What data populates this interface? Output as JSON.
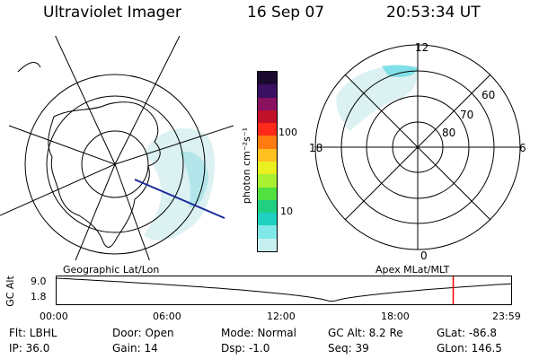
{
  "header": {
    "instrument": "Ultraviolet Imager",
    "date": "16 Sep 07",
    "time": "20:53:34 UT"
  },
  "left_panel": {
    "caption": "Geographic Lat/Lon"
  },
  "right_panel": {
    "caption": "Apex MLat/MLT",
    "mlt_labels": {
      "top": "12",
      "left": "18",
      "right": "6",
      "bottom": "0"
    },
    "lat_labels": [
      "60",
      "70",
      "80"
    ]
  },
  "colorbar": {
    "label": "photon cm⁻²s⁻¹",
    "ticks": [
      "100",
      "10"
    ],
    "colors": [
      "#1a0a2e",
      "#3a1060",
      "#8a1060",
      "#c0102a",
      "#ff2a1a",
      "#ff7a10",
      "#ffc020",
      "#e8f020",
      "#a8f030",
      "#50e040",
      "#20d080",
      "#20d0c0",
      "#80e8e8",
      "#c8f0f0"
    ]
  },
  "altitude_plot": {
    "ylabel": "GC Alt",
    "yticks": [
      "9.0",
      "1.8"
    ],
    "xticks": [
      "00:00",
      "06:00",
      "12:00",
      "18:00",
      "23:59"
    ],
    "current_time_hours": 20.9
  },
  "info": {
    "flt": "Flt: LBHL",
    "ip": "IP: 36.0",
    "door": "Door: Open",
    "gain": "Gain: 14",
    "mode": "Mode: Normal",
    "dsp": "Dsp:   -1.0",
    "gc_alt": "GC Alt: 8.2 Re",
    "seq": "Seq: 39",
    "glat": "GLat: -86.8",
    "glon": "GLon: 146.5"
  }
}
